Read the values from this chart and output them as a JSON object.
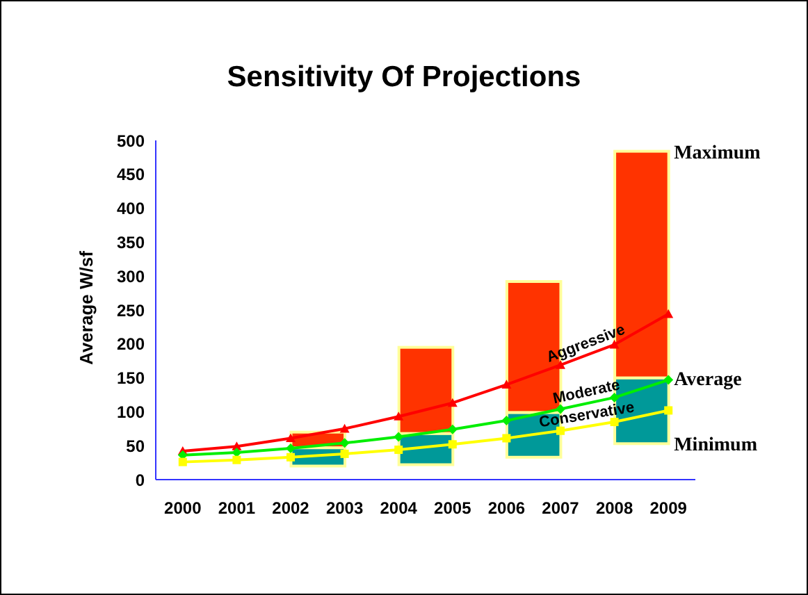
{
  "chart_data": {
    "type": "line",
    "title": "Sensitivity Of Projections",
    "ylabel": "Average W/sf",
    "x": [
      2000,
      2001,
      2002,
      2003,
      2004,
      2005,
      2006,
      2007,
      2008,
      2009
    ],
    "xlim": [
      1999.5,
      2009.5
    ],
    "xticks": [
      2000,
      2001,
      2002,
      2003,
      2004,
      2005,
      2006,
      2007,
      2008,
      2009
    ],
    "ylim": [
      0,
      500
    ],
    "yticks": [
      0,
      50,
      100,
      150,
      200,
      250,
      300,
      350,
      400,
      450,
      500
    ],
    "stacked": true,
    "series": [
      {
        "type": "bar",
        "x": [
          2002.5,
          2004.5,
          2006.5,
          2008.5
        ],
        "base": [
          20,
          22,
          33,
          53
        ],
        "color": "#009999",
        "values": [
          27,
          46,
          66,
          97
        ]
      },
      {
        "type": "bar",
        "x": [
          2002.5,
          2004.5,
          2006.5,
          2008.5
        ],
        "color": "#ff3300",
        "values": [
          23,
          127,
          193,
          334
        ]
      },
      {
        "name": "Aggressive",
        "color": "#ff0000",
        "marker": "triangle",
        "values": [
          42,
          49,
          61,
          75,
          93,
          113,
          140,
          169,
          199,
          244
        ]
      },
      {
        "name": "Moderate",
        "color": "#00ee00",
        "marker": "diamond",
        "values": [
          36,
          40,
          46,
          54,
          63,
          74,
          87,
          104,
          121,
          147
        ]
      },
      {
        "name": "Conservative",
        "color": "#ffff00",
        "marker": "square",
        "values": [
          26,
          29,
          33,
          38,
          44,
          52,
          61,
          72,
          85,
          102
        ]
      }
    ],
    "annotations": [
      "Maximum",
      "Average",
      "Minimum"
    ]
  }
}
